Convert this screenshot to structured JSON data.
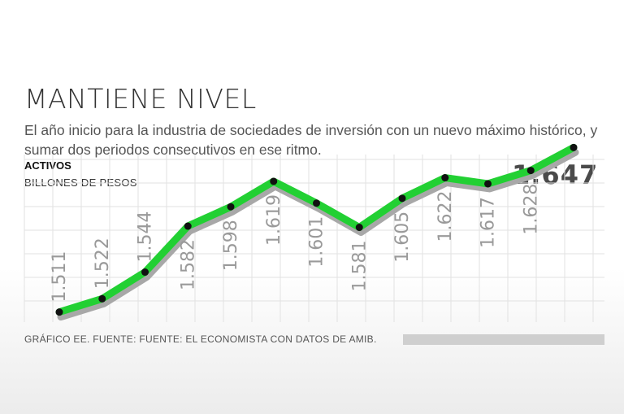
{
  "header": {
    "title": "MANTIENE NIVEL",
    "subtitle": "El año inicio para la industria de sociedades de inversión con un nuevo máximo histórico, y sumar dos periodos consecutivos en ese ritmo."
  },
  "axis": {
    "label_main": "ACTIVOS",
    "label_unit": "BILLONES DE PESOS"
  },
  "footer": {
    "source": "GRÁFICO EE. FUENTE: FUENTE: EL ECONOMISTA CON DATOS DE AMIB."
  },
  "colors": {
    "line": "#22d033",
    "shadow": "#a8a8a8",
    "point": "#111111",
    "grid": "#e2e2e2"
  },
  "chart_data": {
    "type": "line",
    "title": "MANTIENE NIVEL",
    "xlabel": "",
    "ylabel": "ACTIVOS BILLONES DE PESOS",
    "grid": true,
    "series": [
      {
        "values": [
          1.511,
          1.522,
          1.544,
          1.582,
          1.598,
          1.619,
          1.601,
          1.581,
          1.605,
          1.622,
          1.617,
          1.628,
          1.647
        ],
        "labels": [
          "1.511",
          "1.522",
          "1.544",
          "1.582",
          "1.598",
          "1.619",
          "1.601",
          "1.581",
          "1.605",
          "1.622",
          "1.617",
          "1.628",
          "1.647"
        ]
      }
    ],
    "ylim": [
      1.5,
      1.66
    ]
  }
}
